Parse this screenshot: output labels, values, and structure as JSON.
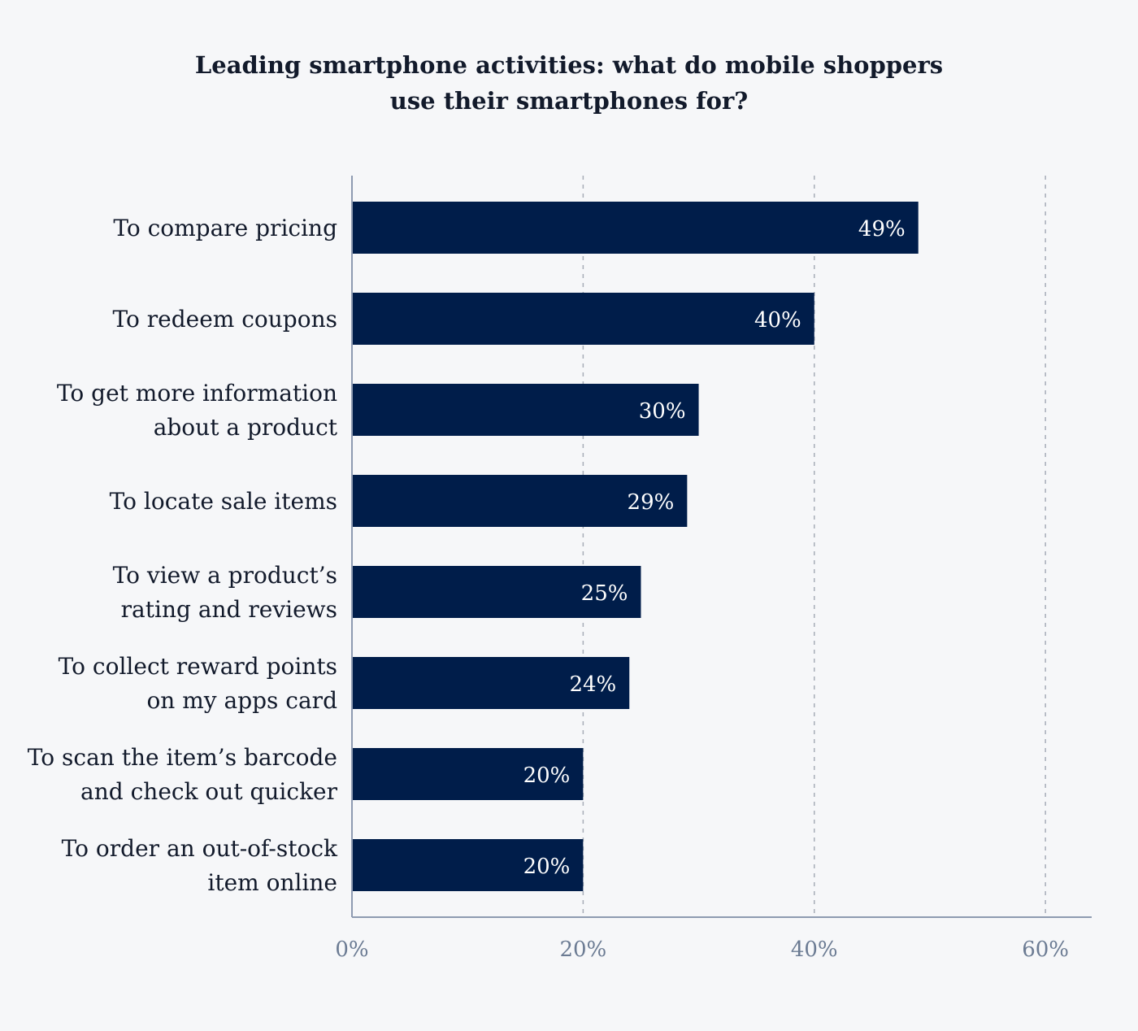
{
  "chart_data": {
    "type": "bar",
    "orientation": "horizontal",
    "title_lines": [
      "Leading smartphone activities: what do mobile shoppers",
      "use their smartphones for?"
    ],
    "categories": [
      [
        "To compare pricing"
      ],
      [
        "To redeem coupons"
      ],
      [
        "To get more information",
        "about a product"
      ],
      [
        "To locate sale items"
      ],
      [
        "To view a product’s",
        "rating and reviews"
      ],
      [
        "To collect reward points",
        "on my apps card"
      ],
      [
        "To scan the item’s barcode",
        "and check out quicker"
      ],
      [
        "To order an out-of-stock",
        "item online"
      ]
    ],
    "values": [
      49,
      40,
      30,
      29,
      25,
      24,
      20,
      20
    ],
    "value_labels": [
      "49%",
      "40%",
      "30%",
      "29%",
      "25%",
      "24%",
      "20%",
      "20%"
    ],
    "xlim": [
      0,
      64
    ],
    "ticks": [
      0,
      20,
      40,
      60
    ],
    "tick_labels": [
      "0%",
      "20%",
      "40%",
      "60%"
    ],
    "grid": "vertical dashed",
    "colors": {
      "bar": "#001d4a",
      "bar_label": "#ffffff",
      "category_text": "#121a2b",
      "tick_text": "#6b7b93",
      "axis": "#8e9bb1",
      "grid": "#a7adb8"
    }
  }
}
